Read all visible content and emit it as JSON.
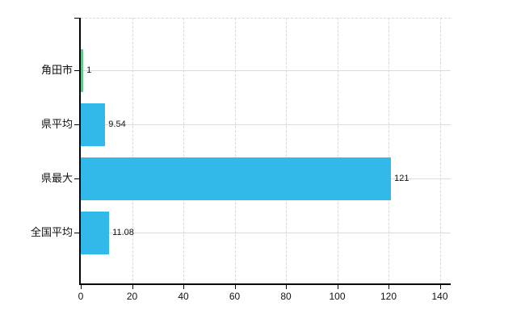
{
  "page": {
    "background_color": "#ffffff"
  },
  "chart_data": {
    "type": "bar",
    "orientation": "horizontal",
    "title": "",
    "xlabel": "",
    "ylabel": "",
    "categories": [
      "角田市",
      "県平均",
      "県最大",
      "全国平均"
    ],
    "values": [
      1,
      9.54,
      121,
      11.08
    ],
    "value_labels": [
      "1",
      "9.54",
      "121",
      "11.08"
    ],
    "series": [
      {
        "name": "値",
        "values": [
          1,
          9.54,
          121,
          11.08
        ]
      }
    ],
    "bar_colors": [
      "#62c98c",
      "#31b9ea",
      "#31b9ea",
      "#31b9ea"
    ],
    "xlim": [
      0,
      140
    ],
    "x_ticks": [
      0,
      20,
      40,
      60,
      80,
      100,
      120,
      140
    ],
    "x_tick_labels": [
      "0",
      "20",
      "40",
      "60",
      "80",
      "100",
      "120",
      "140"
    ],
    "legend": "none",
    "grid": {
      "vertical_style": "dashed",
      "horizontal_style": "solid",
      "gridline_color": "#d8d8d8",
      "plot_top_border": "dashed"
    },
    "axis_color": "#000000",
    "text_color": "#111111"
  }
}
